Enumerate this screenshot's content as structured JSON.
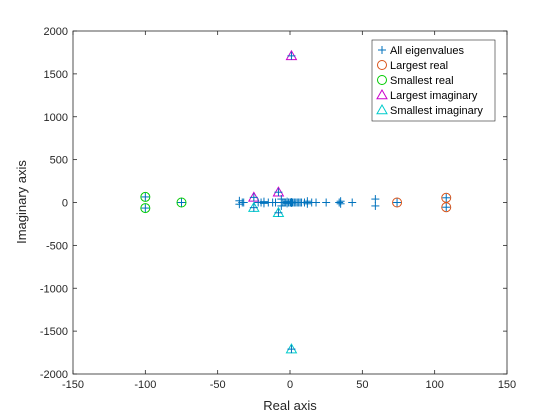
{
  "chart_data": {
    "type": "scatter",
    "xlabel": "Real axis",
    "ylabel": "Imaginary axis",
    "xlim": [
      -150,
      150
    ],
    "ylim": [
      -2000,
      2000
    ],
    "xticks": [
      -150,
      -100,
      -50,
      0,
      50,
      100,
      150
    ],
    "yticks": [
      -2000,
      -1500,
      -1000,
      -500,
      0,
      500,
      1000,
      1500,
      2000
    ],
    "grid": false,
    "legend_position": "top-right",
    "series": [
      {
        "name": "All eigenvalues",
        "marker": "plus",
        "color": "#0072BD",
        "points": [
          [
            -100,
            65
          ],
          [
            -100,
            -65
          ],
          [
            -75,
            0
          ],
          [
            -35,
            20
          ],
          [
            -35,
            -20
          ],
          [
            -33,
            0
          ],
          [
            -32,
            0
          ],
          [
            -25,
            60
          ],
          [
            -25,
            -60
          ],
          [
            -22,
            0
          ],
          [
            -20,
            0
          ],
          [
            -18,
            10
          ],
          [
            -18,
            -10
          ],
          [
            -15,
            0
          ],
          [
            -12,
            0
          ],
          [
            -10,
            0
          ],
          [
            -8,
            120
          ],
          [
            -8,
            -120
          ],
          [
            -6,
            40
          ],
          [
            -6,
            -40
          ],
          [
            -5,
            0
          ],
          [
            -4,
            0
          ],
          [
            -3,
            0
          ],
          [
            -2,
            10
          ],
          [
            -2,
            -10
          ],
          [
            -1,
            0
          ],
          [
            0,
            0
          ],
          [
            0.5,
            0
          ],
          [
            1,
            5
          ],
          [
            1,
            -5
          ],
          [
            1.5,
            0
          ],
          [
            2,
            0
          ],
          [
            3,
            0
          ],
          [
            4,
            0
          ],
          [
            5,
            0
          ],
          [
            6,
            0
          ],
          [
            7,
            0
          ],
          [
            8,
            0
          ],
          [
            10,
            0
          ],
          [
            12,
            15
          ],
          [
            12,
            -15
          ],
          [
            15,
            0
          ],
          [
            18,
            0
          ],
          [
            25,
            0
          ],
          [
            34,
            0
          ],
          [
            35,
            15
          ],
          [
            35,
            -15
          ],
          [
            43,
            0
          ],
          [
            59,
            40
          ],
          [
            59,
            -40
          ],
          [
            74,
            0
          ],
          [
            108,
            55
          ],
          [
            108,
            -55
          ],
          [
            1,
            1710
          ],
          [
            1,
            -1710
          ]
        ]
      },
      {
        "name": "Largest real",
        "marker": "circle",
        "color": "#D95319",
        "points": [
          [
            74,
            0
          ],
          [
            108,
            55
          ],
          [
            108,
            -55
          ]
        ]
      },
      {
        "name": "Smallest real",
        "marker": "circle",
        "color": "#00CC00",
        "points": [
          [
            -100,
            65
          ],
          [
            -100,
            -65
          ],
          [
            -75,
            0
          ]
        ]
      },
      {
        "name": "Largest imaginary",
        "marker": "triangle",
        "color": "#CC00CC",
        "points": [
          [
            1,
            1710
          ],
          [
            -25,
            60
          ],
          [
            -8,
            120
          ]
        ]
      },
      {
        "name": "Smallest imaginary",
        "marker": "triangle",
        "color": "#00CCCC",
        "points": [
          [
            1,
            -1710
          ],
          [
            -25,
            -60
          ],
          [
            -8,
            -120
          ]
        ]
      }
    ]
  }
}
